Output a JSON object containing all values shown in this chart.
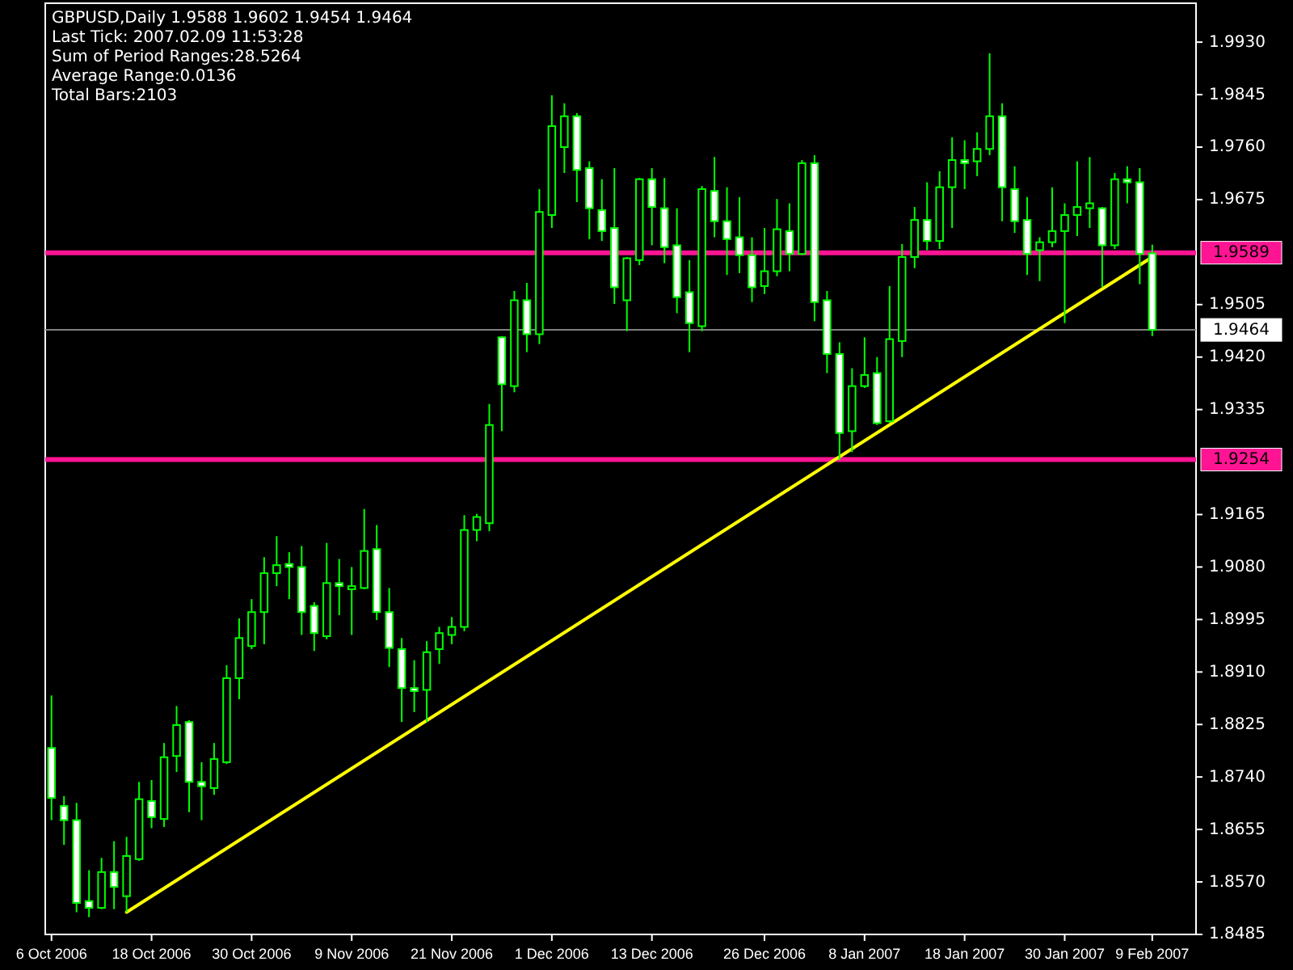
{
  "chart_data": {
    "type": "candlestick",
    "title": "GBPUSD,Daily 1.9588 1.9602 1.9454 1.9464",
    "annotations": [
      "Last Tick: 2007.02.09 11:53:28",
      "Sum of Period Ranges:28.5264",
      "Average Range:0.0136",
      "Total Bars:2103"
    ],
    "categories": [
      "6 Oct 2006",
      null,
      null,
      null,
      null,
      null,
      null,
      null,
      "18 Oct 2006",
      null,
      null,
      null,
      null,
      null,
      null,
      null,
      "30 Oct 2006",
      null,
      null,
      null,
      null,
      null,
      null,
      null,
      "9 Nov 2006",
      null,
      null,
      null,
      null,
      null,
      null,
      null,
      "21 Nov 2006",
      null,
      null,
      null,
      null,
      null,
      null,
      null,
      "1 Dec 2006",
      null,
      null,
      null,
      null,
      null,
      null,
      null,
      "13 Dec 2006",
      null,
      null,
      null,
      null,
      null,
      null,
      null,
      null,
      "26 Dec 2006",
      null,
      null,
      null,
      null,
      null,
      null,
      null,
      "8 Jan 2007",
      null,
      null,
      null,
      null,
      null,
      null,
      null,
      "18 Jan 2007",
      null,
      null,
      null,
      null,
      null,
      null,
      null,
      "30 Jan 2007",
      null,
      null,
      null,
      null,
      null,
      null,
      "9 Feb 2007"
    ],
    "ohlc": [
      [
        1.8787,
        1.8872,
        1.867,
        1.8706
      ],
      [
        1.8693,
        1.8709,
        1.863,
        1.867
      ],
      [
        1.867,
        1.8698,
        1.8521,
        1.8536
      ],
      [
        1.8539,
        1.8589,
        1.8513,
        1.8528
      ],
      [
        1.8528,
        1.8609,
        1.8526,
        1.8586
      ],
      [
        1.8586,
        1.8636,
        1.8526,
        1.8562
      ],
      [
        1.8547,
        1.8643,
        1.8521,
        1.8612
      ],
      [
        1.8607,
        1.8732,
        1.8604,
        1.8704
      ],
      [
        1.8701,
        1.8735,
        1.8657,
        1.8675
      ],
      [
        1.8672,
        1.8795,
        1.8659,
        1.8772
      ],
      [
        1.8774,
        1.8855,
        1.8748,
        1.8824
      ],
      [
        1.8829,
        1.8832,
        1.8683,
        1.8732
      ],
      [
        1.8732,
        1.8764,
        1.867,
        1.8725
      ],
      [
        1.8722,
        1.8795,
        1.8711,
        1.8769
      ],
      [
        1.8764,
        1.8921,
        1.8761,
        1.89
      ],
      [
        1.89,
        1.8997,
        1.8866,
        1.8965
      ],
      [
        1.8952,
        1.9028,
        1.8947,
        1.9007
      ],
      [
        1.9007,
        1.9096,
        1.8955,
        1.907
      ],
      [
        1.907,
        1.913,
        1.9049,
        1.9083
      ],
      [
        1.9085,
        1.9104,
        1.9028,
        1.908
      ],
      [
        1.908,
        1.9114,
        1.897,
        1.9007
      ],
      [
        1.9017,
        1.9023,
        1.8944,
        1.8973
      ],
      [
        1.8968,
        1.9119,
        1.8963,
        1.9054
      ],
      [
        1.9054,
        1.9093,
        1.9002,
        1.9049
      ],
      [
        1.9044,
        1.908,
        1.897,
        1.9049
      ],
      [
        1.9046,
        1.9174,
        1.9044,
        1.9106
      ],
      [
        1.9109,
        1.9148,
        1.8994,
        1.9007
      ],
      [
        1.9007,
        1.9046,
        1.8918,
        1.8949
      ],
      [
        1.8947,
        1.8965,
        1.8829,
        1.8884
      ],
      [
        1.8884,
        1.8929,
        1.8845,
        1.8879
      ],
      [
        1.8881,
        1.896,
        1.8829,
        1.8942
      ],
      [
        1.8947,
        1.8983,
        1.8923,
        1.8973
      ],
      [
        1.897,
        1.8999,
        1.8955,
        1.8983
      ],
      [
        1.8983,
        1.9164,
        1.8976,
        1.914
      ],
      [
        1.914,
        1.9166,
        1.9122,
        1.9161
      ],
      [
        1.9151,
        1.9344,
        1.9138,
        1.931
      ],
      [
        1.9452,
        1.9454,
        1.93,
        1.9376
      ],
      [
        1.9373,
        1.9527,
        1.9363,
        1.9512
      ],
      [
        1.9512,
        1.954,
        1.9428,
        1.9457
      ],
      [
        1.9457,
        1.9692,
        1.9441,
        1.9655
      ],
      [
        1.965,
        1.9844,
        1.9629,
        1.9794
      ],
      [
        1.976,
        1.9831,
        1.9718,
        1.981
      ],
      [
        1.981,
        1.9815,
        1.9671,
        1.9723
      ],
      [
        1.9726,
        1.9737,
        1.9611,
        1.9661
      ],
      [
        1.9658,
        1.9708,
        1.9608,
        1.9624
      ],
      [
        1.9629,
        1.9726,
        1.9506,
        1.9533
      ],
      [
        1.9512,
        1.9582,
        1.9462,
        1.958
      ],
      [
        1.9577,
        1.971,
        1.9569,
        1.9708
      ],
      [
        1.9708,
        1.9726,
        1.9601,
        1.9663
      ],
      [
        1.9661,
        1.971,
        1.9572,
        1.9598
      ],
      [
        1.9601,
        1.9661,
        1.9491,
        1.9517
      ],
      [
        1.9525,
        1.9577,
        1.9428,
        1.9475
      ],
      [
        1.947,
        1.9697,
        1.9462,
        1.9692
      ],
      [
        1.9689,
        1.9744,
        1.9614,
        1.964
      ],
      [
        1.964,
        1.9695,
        1.9553,
        1.9611
      ],
      [
        1.9614,
        1.9679,
        1.9556,
        1.9585
      ],
      [
        1.9585,
        1.9614,
        1.9509,
        1.9533
      ],
      [
        1.9535,
        1.9629,
        1.9522,
        1.9559
      ],
      [
        1.9559,
        1.9676,
        1.9551,
        1.9627
      ],
      [
        1.9624,
        1.9669,
        1.9559,
        1.9587
      ],
      [
        1.9587,
        1.9739,
        1.9585,
        1.9734
      ],
      [
        1.9734,
        1.9747,
        1.9478,
        1.9509
      ],
      [
        1.9512,
        1.9527,
        1.9394,
        1.9425
      ],
      [
        1.9425,
        1.9444,
        1.9253,
        1.9297
      ],
      [
        1.93,
        1.9402,
        1.9266,
        1.9373
      ],
      [
        1.9373,
        1.9452,
        1.937,
        1.9391
      ],
      [
        1.9394,
        1.942,
        1.931,
        1.9313
      ],
      [
        1.9316,
        1.9535,
        1.9314,
        1.9449
      ],
      [
        1.9446,
        1.9603,
        1.942,
        1.9582
      ],
      [
        1.9582,
        1.9663,
        1.9564,
        1.9642
      ],
      [
        1.9642,
        1.9703,
        1.9593,
        1.9608
      ],
      [
        1.9608,
        1.9721,
        1.9595,
        1.9695
      ],
      [
        1.9695,
        1.9776,
        1.9629,
        1.9739
      ],
      [
        1.9739,
        1.9771,
        1.9692,
        1.9734
      ],
      [
        1.9737,
        1.9784,
        1.9713,
        1.9757
      ],
      [
        1.9757,
        1.9912,
        1.9747,
        1.981
      ],
      [
        1.981,
        1.9831,
        1.964,
        1.9695
      ],
      [
        1.9692,
        1.9729,
        1.9621,
        1.964
      ],
      [
        1.9642,
        1.9679,
        1.9553,
        1.9587
      ],
      [
        1.9593,
        1.9614,
        1.9543,
        1.9606
      ],
      [
        1.9606,
        1.9695,
        1.9598,
        1.9624
      ],
      [
        1.9624,
        1.9669,
        1.9475,
        1.965
      ],
      [
        1.965,
        1.9737,
        1.9616,
        1.9663
      ],
      [
        1.9661,
        1.9744,
        1.9629,
        1.9669
      ],
      [
        1.9661,
        1.9663,
        1.9533,
        1.9601
      ],
      [
        1.9601,
        1.9718,
        1.9595,
        1.9708
      ],
      [
        1.9708,
        1.9729,
        1.9669,
        1.9703
      ],
      [
        1.9703,
        1.9726,
        1.9538,
        1.9587
      ],
      [
        1.9588,
        1.9602,
        1.9454,
        1.9464
      ]
    ],
    "series": [
      {
        "type": "line",
        "color": "#ffff00",
        "values": [
          null,
          null,
          null,
          null,
          null,
          null,
          1.8521,
          null,
          null,
          null,
          null,
          null,
          null,
          null,
          null,
          null,
          null,
          null,
          null,
          null,
          null,
          null,
          null,
          null,
          null,
          null,
          null,
          null,
          null,
          null,
          null,
          null,
          null,
          null,
          null,
          null,
          null,
          null,
          null,
          null,
          null,
          null,
          null,
          null,
          null,
          null,
          null,
          null,
          null,
          null,
          null,
          null,
          null,
          null,
          null,
          null,
          null,
          null,
          null,
          null,
          null,
          null,
          null,
          null,
          null,
          null,
          null,
          null,
          null,
          null,
          null,
          null,
          null,
          null,
          null,
          null,
          null,
          null,
          null,
          null,
          null,
          null,
          null,
          null,
          null,
          null,
          null,
          null,
          1.9582
        ]
      }
    ],
    "ylim": [
      1.8485,
      1.9993
    ],
    "yticks": [
      {
        "value": 1.993,
        "label": "1.9930"
      },
      1.9845,
      {
        "value": 1.976,
        "label": "1.9760"
      },
      1.9675,
      1.9505,
      {
        "value": 1.942,
        "label": "1.9420"
      },
      1.9335,
      1.9165,
      {
        "value": 1.908,
        "label": "1.9080"
      },
      1.8995,
      {
        "value": 1.891,
        "label": "1.8910"
      },
      1.8825,
      {
        "value": 1.874,
        "label": "1.8740"
      },
      1.8655,
      {
        "value": 1.857,
        "label": "1.8570"
      },
      1.8485
    ],
    "ref_lines": [
      {
        "axis": "y",
        "value": 1.9589,
        "label": "1.9589",
        "color": "#ff1493"
      },
      {
        "axis": "y",
        "value": 1.9254,
        "label": "1.9254",
        "color": "#ff1493"
      },
      {
        "axis": "y",
        "value": 1.9464,
        "label": "1.9464",
        "color": "#808080"
      }
    ]
  }
}
